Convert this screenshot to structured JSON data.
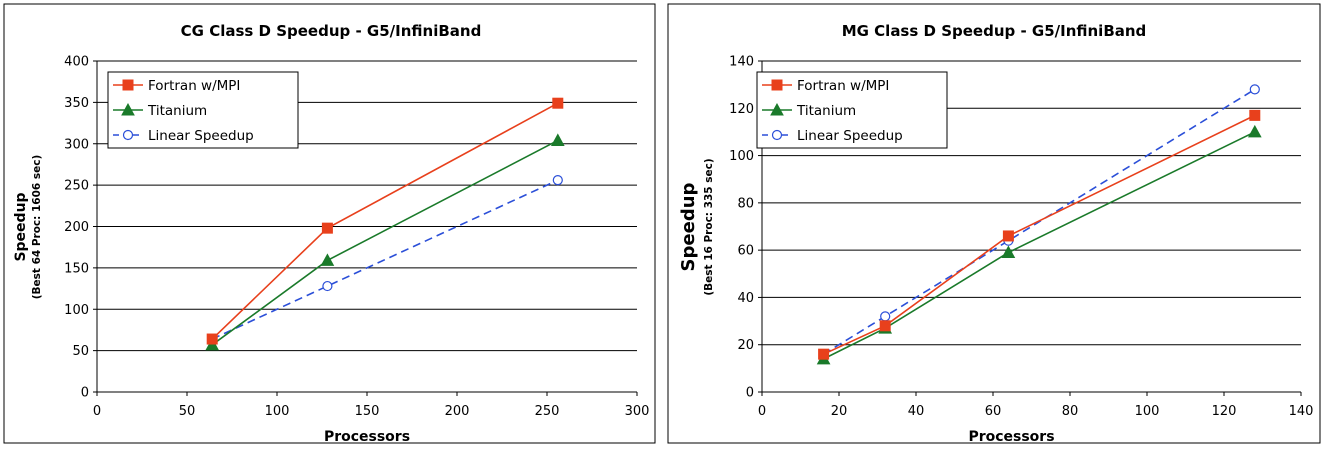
{
  "chart_data": [
    {
      "type": "line",
      "title": "CG Class D Speedup - G5/InfiniBand",
      "xlabel": "Processors",
      "ylabel": "Speedup",
      "ylabel_sub": "(Best 64 Proc: 1606 sec)",
      "xlim": [
        0,
        300
      ],
      "ylim": [
        0,
        400
      ],
      "xticks": [
        0,
        50,
        100,
        150,
        200,
        250,
        300
      ],
      "yticks": [
        0,
        50,
        100,
        150,
        200,
        250,
        300,
        350,
        400
      ],
      "grid": "horizontal",
      "legend": "top-left",
      "series": [
        {
          "name": "Fortran w/MPI",
          "color": "#e8401c",
          "marker": "square",
          "dash": "solid",
          "x": [
            64,
            128,
            256
          ],
          "y": [
            64,
            198,
            349
          ]
        },
        {
          "name": "Titanium",
          "color": "#1a7a2a",
          "marker": "triangle",
          "dash": "solid",
          "x": [
            64,
            128,
            256
          ],
          "y": [
            57,
            159,
            304
          ]
        },
        {
          "name": "Linear Speedup",
          "color": "#2b4fd8",
          "marker": "circle",
          "dash": "dashed",
          "x": [
            64,
            128,
            256
          ],
          "y": [
            64,
            128,
            256
          ]
        }
      ]
    },
    {
      "type": "line",
      "title": "MG Class D Speedup - G5/InfiniBand",
      "xlabel": "Processors",
      "ylabel": "Speedup",
      "ylabel_sub": "(Best 16 Proc: 335 sec)",
      "xlim": [
        0,
        140
      ],
      "ylim": [
        0,
        140
      ],
      "xticks": [
        0,
        20,
        40,
        60,
        80,
        100,
        120,
        140
      ],
      "yticks": [
        0,
        20,
        40,
        60,
        80,
        100,
        120,
        140
      ],
      "grid": "horizontal",
      "legend": "top-left",
      "series": [
        {
          "name": "Fortran w/MPI",
          "color": "#e8401c",
          "marker": "square",
          "dash": "solid",
          "x": [
            16,
            32,
            64,
            128
          ],
          "y": [
            16,
            28,
            66,
            117
          ]
        },
        {
          "name": "Titanium",
          "color": "#1a7a2a",
          "marker": "triangle",
          "dash": "solid",
          "x": [
            16,
            32,
            64,
            128
          ],
          "y": [
            14,
            27,
            59,
            110
          ]
        },
        {
          "name": "Linear Speedup",
          "color": "#2b4fd8",
          "marker": "circle",
          "dash": "dashed",
          "x": [
            16,
            32,
            64,
            128
          ],
          "y": [
            16,
            32,
            64,
            128
          ]
        }
      ]
    }
  ]
}
